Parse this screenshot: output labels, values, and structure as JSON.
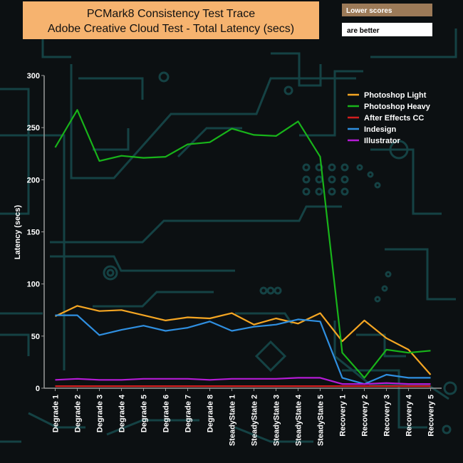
{
  "colors": {
    "background": "#0c1012",
    "decor": "#16484a",
    "title_box": "#f6b36f",
    "note_box_1": "#9c7a58",
    "note_box_2": "#ffffff"
  },
  "notes": {
    "line1": "Lower scores",
    "line2": "are better"
  },
  "chart_data": {
    "type": "line",
    "title_line1": "PCMark8 Consistency Test Trace",
    "title_line2": "Adobe Creative Cloud Test -  Total Latency (secs)",
    "xlabel": "",
    "ylabel": "Latency (secs)",
    "ylim": [
      0,
      300
    ],
    "yticks": [
      "0",
      "50",
      "100",
      "150",
      "200",
      "250",
      "300"
    ],
    "grid": false,
    "legend_position": "top-right",
    "categories": [
      "Degrade 1",
      "Degrade 2",
      "Degrade 3",
      "Degrade 4",
      "Degrade 5",
      "Degrade 6",
      "Degrade 7",
      "Degrade 8",
      "SteadyState 1",
      "SteadyState 2",
      "SteadyState 3",
      "SteadyState 4",
      "SteadyState 5",
      "Recovery 1",
      "Recovery 2",
      "Recovery 3",
      "Recovery 4",
      "Recovery 5"
    ],
    "series": [
      {
        "name": "Photoshop Light",
        "color": "#f5a623",
        "values": [
          69,
          79,
          74,
          75,
          70,
          65,
          68,
          67,
          72,
          61,
          67,
          62,
          72,
          45,
          65,
          48,
          37,
          13
        ]
      },
      {
        "name": " Photoshop Heavy",
        "color": "#18b41a",
        "values": [
          231,
          267,
          218,
          223,
          221,
          222,
          234,
          236,
          249,
          243,
          242,
          256,
          222,
          34,
          10,
          37,
          34,
          36
        ]
      },
      {
        "name": "After Effects CC",
        "color": "#d21e1e",
        "values": [
          2,
          2,
          2,
          2,
          2,
          2,
          2,
          2,
          2,
          2,
          2,
          2,
          2,
          2,
          2,
          2,
          2,
          2
        ]
      },
      {
        "name": "Indesign",
        "color": "#2f8fe0",
        "values": [
          70,
          70,
          51,
          56,
          60,
          55,
          58,
          64,
          55,
          59,
          61,
          66,
          64,
          10,
          4,
          13,
          10,
          10
        ]
      },
      {
        "name": "Illustrator",
        "color": "#b51bd6",
        "values": [
          8,
          9,
          8,
          8,
          9,
          9,
          9,
          8,
          9,
          9,
          9,
          10,
          10,
          4,
          4,
          5,
          4,
          4
        ]
      }
    ]
  }
}
